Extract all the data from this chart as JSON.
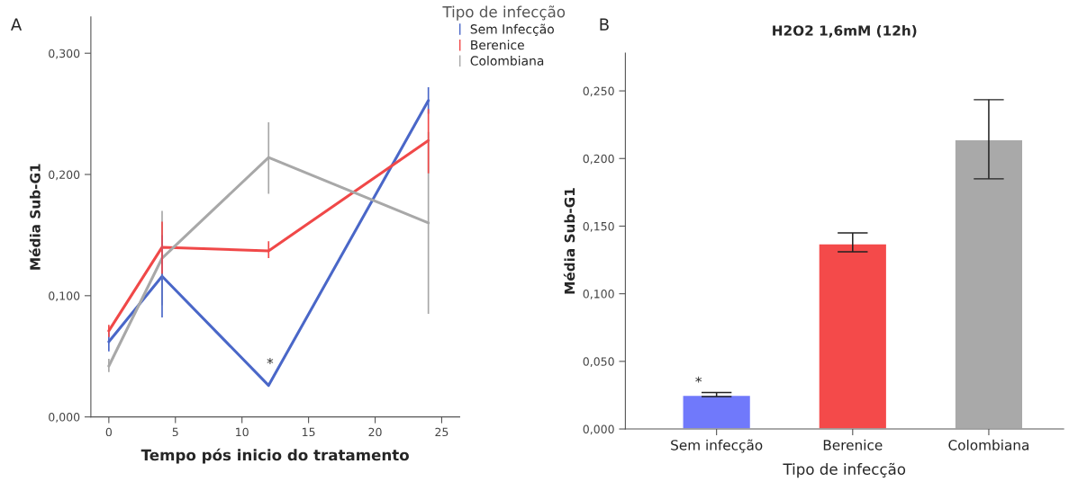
{
  "chart_data": [
    {
      "type": "line",
      "xlabel": "Tempo pós inicio do tratamento",
      "ylabel": "Média Sub-G1",
      "legend_title": "Tipo de infecção",
      "legend": "top right",
      "marker": "none",
      "line_style": "solid",
      "grid": false,
      "x": [
        0,
        4,
        12,
        24
      ],
      "xlim": [
        -1.35,
        26.35
      ],
      "xticks": [
        0,
        5,
        10,
        15,
        20,
        25
      ],
      "ylim": [
        0,
        0.33
      ],
      "yticks": [
        {
          "value": 0,
          "label": "0,000"
        },
        {
          "value": 0.1,
          "label": "0,100"
        },
        {
          "value": 0.2,
          "label": "0,200"
        },
        {
          "value": 0.3,
          "label": "0,300"
        }
      ],
      "series": [
        {
          "name": "Sem Infecção",
          "color": "#4a67c8",
          "values": [
            0.062,
            0.116,
            0.026,
            0.261
          ],
          "errors": [
            [
              0.054,
              0.07
            ],
            [
              0.082,
              0.15
            ],
            null,
            [
              0.25,
              0.272
            ]
          ]
        },
        {
          "name": "Berenice",
          "color": "#f04848",
          "values": [
            0.071,
            0.14,
            0.137,
            0.228
          ],
          "errors": [
            [
              0.066,
              0.076
            ],
            [
              0.118,
              0.161
            ],
            [
              0.131,
              0.145
            ],
            [
              0.201,
              0.254
            ]
          ]
        },
        {
          "name": "Colombiana",
          "color": "#a8a8a8",
          "values": [
            0.042,
            0.131,
            0.214,
            0.16
          ],
          "errors": [
            [
              0.037,
              0.048
            ],
            [
              0.092,
              0.17
            ],
            [
              0.184,
              0.243
            ],
            [
              0.085,
              0.235
            ]
          ]
        }
      ],
      "annotations": [
        "A",
        "*"
      ]
    },
    {
      "type": "bar",
      "title": "H2O2 1,6mM (12h)",
      "xlabel": "Tipo de infecção",
      "ylabel": "Média Sub-G1",
      "grid": false,
      "categories": [
        "Sem infecção",
        "Berenice",
        "Colombiana"
      ],
      "values": [
        0.025,
        0.137,
        0.214
      ],
      "colors": [
        "#7079fb",
        "#f44a4a",
        "#a9a9a9"
      ],
      "errors": [
        [
          0.024,
          0.027
        ],
        [
          0.131,
          0.145
        ],
        [
          0.185,
          0.2435
        ]
      ],
      "ylim": [
        0,
        0.278
      ],
      "yticks": [
        {
          "value": 0,
          "label": "0,000"
        },
        {
          "value": 0.05,
          "label": "0,050"
        },
        {
          "value": 0.1,
          "label": "0,100"
        },
        {
          "value": 0.15,
          "label": "0,150"
        },
        {
          "value": 0.2,
          "label": "0,200"
        },
        {
          "value": 0.25,
          "label": "0,250"
        }
      ],
      "annotations": [
        "B",
        "*"
      ]
    }
  ]
}
